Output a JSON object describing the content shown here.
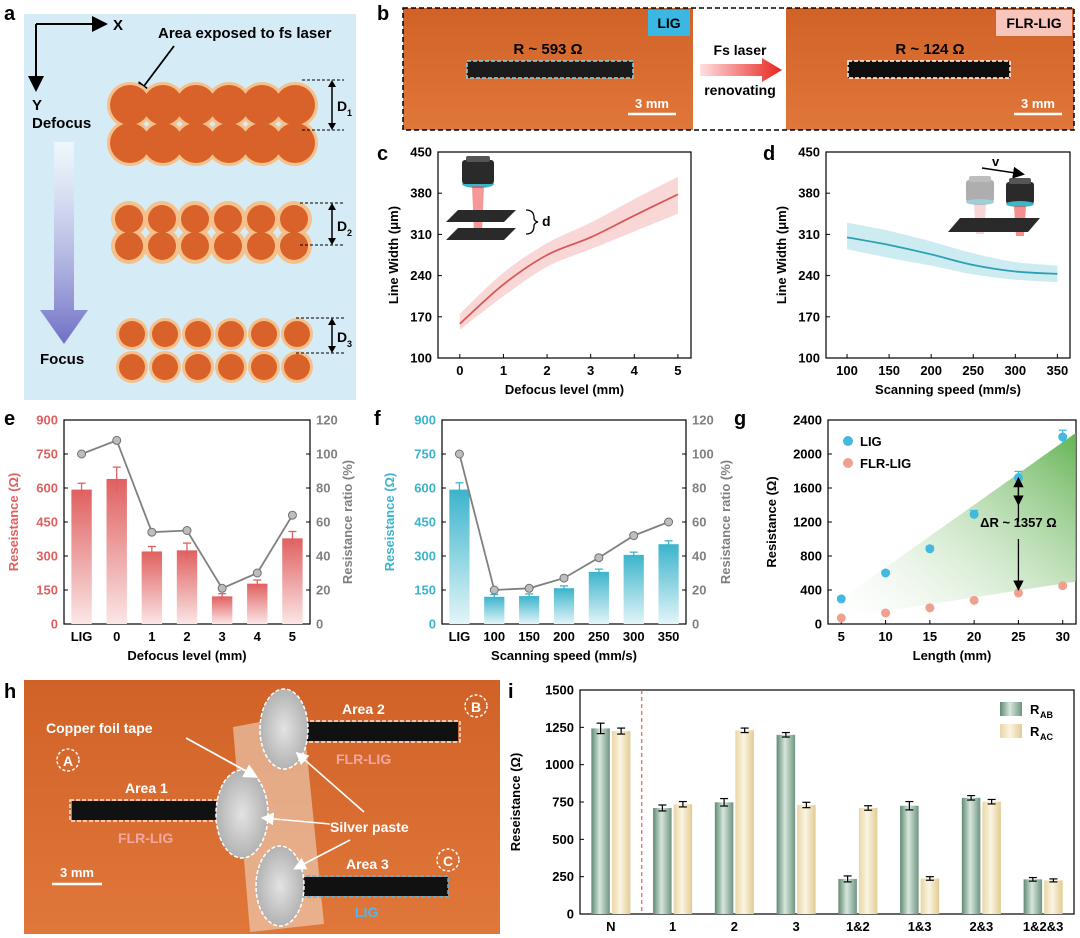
{
  "colors": {
    "red": "#e06060",
    "blue": "#3cb4cc",
    "grey": "#808080",
    "green": "#7fa28c",
    "cream": "#e6d6a8",
    "substrate": "#d96b2c",
    "circle_fill": "#d9622b",
    "circle_ring": "#f5c08a",
    "panel_a_bg": "#d5ebf6"
  },
  "panels": {
    "a": "a",
    "b": "b",
    "c": "c",
    "d": "d",
    "e": "e",
    "f": "f",
    "g": "g",
    "h": "h",
    "i": "i"
  },
  "panel_a": {
    "x_label": "X",
    "y_label": "Y",
    "annotation": "Area exposed to fs laser",
    "defocus": "Defocus",
    "focus": "Focus",
    "d1": "D",
    "d1_sub": "1",
    "d2": "D",
    "d2_sub": "2",
    "d3": "D",
    "d3_sub": "3"
  },
  "panel_b": {
    "tag_left": "LIG",
    "tag_right": "FLR-LIG",
    "r_left": "R ~ 593 Ω",
    "r_right": "R ~ 124 Ω",
    "arrow_top": "Fs laser",
    "arrow_bottom": "renovating",
    "scale_left": "3 mm",
    "scale_right": "3 mm"
  },
  "panel_h": {
    "copper": "Copper foil tape",
    "silver": "Silver paste",
    "area1": "Area 1",
    "area2": "Area 2",
    "area3": "Area 3",
    "flr1": "FLR-LIG",
    "flr2": "FLR-LIG",
    "lig": "LIG",
    "a": "A",
    "b": "B",
    "c": "C",
    "scale": "3 mm"
  },
  "chart_data": [
    {
      "panel": "c",
      "type": "line",
      "xlabel": "Defocus level (mm)",
      "ylabel": "Line Width (μm)",
      "x": [
        0,
        1,
        2,
        3,
        4,
        5
      ],
      "values": [
        158,
        225,
        275,
        305,
        342,
        378
      ],
      "band_upper": [
        175,
        245,
        295,
        330,
        370,
        408
      ],
      "band_lower": [
        148,
        205,
        255,
        285,
        315,
        345
      ],
      "xlim": [
        -0.5,
        5.3
      ],
      "ylim": [
        100,
        450
      ],
      "xticks": [
        0,
        1,
        2,
        3,
        4,
        5
      ],
      "yticks": [
        100,
        170,
        240,
        310,
        380,
        450
      ],
      "inset_label": "d"
    },
    {
      "panel": "d",
      "type": "line",
      "xlabel": "Scanning speed (mm/s)",
      "ylabel": "Line Width (μm)",
      "x": [
        100,
        150,
        200,
        250,
        300,
        350
      ],
      "values": [
        305,
        292,
        276,
        258,
        247,
        243
      ],
      "band_upper": [
        330,
        316,
        298,
        278,
        263,
        257
      ],
      "band_lower": [
        285,
        270,
        257,
        242,
        233,
        229
      ],
      "xlim": [
        75,
        365
      ],
      "ylim": [
        100,
        450
      ],
      "xticks": [
        100,
        150,
        200,
        250,
        300,
        350
      ],
      "yticks": [
        100,
        170,
        240,
        310,
        380,
        450
      ],
      "inset_label": "v"
    },
    {
      "panel": "e",
      "type": "bar",
      "xlabel": "Defocus level (mm)",
      "ylabel": "Reseistance (Ω)",
      "ylabel2": "Resistance ratio (%)",
      "categories": [
        "LIG",
        "0",
        "1",
        "2",
        "3",
        "4",
        "5"
      ],
      "values": [
        593,
        640,
        320,
        325,
        122,
        178,
        378
      ],
      "errors": [
        28,
        52,
        22,
        32,
        12,
        16,
        30
      ],
      "ratio": [
        100,
        108,
        54,
        55,
        21,
        30,
        64
      ],
      "ylim": [
        0,
        900
      ],
      "ylim2": [
        0,
        120
      ],
      "yticks": [
        0,
        150,
        300,
        450,
        600,
        750,
        900
      ],
      "yticks2": [
        0,
        20,
        40,
        60,
        80,
        100,
        120
      ]
    },
    {
      "panel": "f",
      "type": "bar",
      "xlabel": "Scanning speed (mm/s)",
      "ylabel": "Reseistance (Ω)",
      "ylabel2": "Resistance ratio (%)",
      "categories": [
        "LIG",
        "100",
        "150",
        "200",
        "250",
        "300",
        "350"
      ],
      "values": [
        593,
        120,
        123,
        158,
        230,
        305,
        352
      ],
      "errors": [
        30,
        10,
        10,
        10,
        12,
        12,
        15
      ],
      "ratio": [
        100,
        20,
        21,
        27,
        39,
        52,
        60
      ],
      "ylim": [
        0,
        900
      ],
      "ylim2": [
        0,
        120
      ],
      "yticks": [
        0,
        150,
        300,
        450,
        600,
        750,
        900
      ],
      "yticks2": [
        0,
        20,
        40,
        60,
        80,
        100,
        120
      ]
    },
    {
      "panel": "g",
      "type": "scatter",
      "xlabel": "Length (mm)",
      "ylabel": "Resistance (Ω)",
      "x": [
        5,
        10,
        15,
        20,
        25,
        30
      ],
      "series": [
        {
          "name": "LIG",
          "values": [
            295,
            600,
            885,
            1290,
            1720,
            2200
          ],
          "errors": [
            20,
            25,
            30,
            45,
            75,
            80
          ]
        },
        {
          "name": "FLR-LIG",
          "values": [
            70,
            130,
            190,
            278,
            365,
            450
          ],
          "errors": [
            10,
            10,
            12,
            15,
            20,
            20
          ]
        }
      ],
      "annotation": "ΔR ~ 1357 Ω",
      "xlim": [
        3.5,
        31.5
      ],
      "ylim": [
        0,
        2400
      ],
      "xticks": [
        5,
        10,
        15,
        20,
        25,
        30
      ],
      "yticks": [
        0,
        400,
        800,
        1200,
        1600,
        2000,
        2400
      ]
    },
    {
      "panel": "i",
      "type": "bar",
      "xlabel": "",
      "ylabel": "Reseistance (Ω)",
      "categories": [
        "N",
        "1",
        "2",
        "3",
        "1&2",
        "1&3",
        "2&3",
        "1&2&3"
      ],
      "series": [
        {
          "name": "R",
          "sub": "AB",
          "values": [
            1243,
            710,
            748,
            1200,
            235,
            725,
            778,
            232
          ],
          "errors": [
            35,
            20,
            25,
            15,
            20,
            28,
            15,
            12
          ]
        },
        {
          "name": "R",
          "sub": "AC",
          "values": [
            1225,
            735,
            1230,
            730,
            710,
            238,
            752,
            225
          ],
          "errors": [
            20,
            18,
            15,
            18,
            15,
            12,
            15,
            10
          ]
        }
      ],
      "ylim": [
        0,
        1500
      ],
      "yticks": [
        0,
        250,
        500,
        750,
        1000,
        1250,
        1500
      ]
    }
  ]
}
